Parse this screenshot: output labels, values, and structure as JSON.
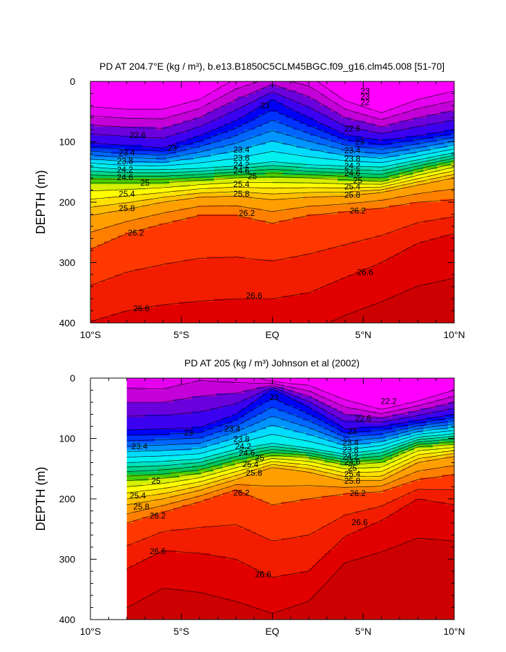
{
  "chart_data": [
    {
      "type": "heatmap",
      "title": "PD AT 204.7°E (kg / m³), b.e13.B1850C5CLM45BGC.f09_g16.clm45.008 [51-70]",
      "ylabel": "DEPTH (m)",
      "x_tick_labels": [
        "10°S",
        "5°S",
        "EQ",
        "5°N",
        "10°N"
      ],
      "x_ticks": [
        -10,
        -5,
        0,
        5,
        10
      ],
      "y_tick_labels": [
        "0",
        "100",
        "200",
        "300",
        "400"
      ],
      "y_ticks": [
        0,
        100,
        200,
        300,
        400
      ],
      "xlim": [
        -10,
        10
      ],
      "ylim": [
        0,
        400
      ],
      "x_coverage": [
        -10,
        10
      ],
      "contour_levels": [
        22.2,
        22.4,
        22.6,
        22.8,
        23.0,
        23.2,
        23.4,
        23.6,
        23.8,
        24.0,
        24.2,
        24.4,
        24.6,
        24.8,
        25.0,
        25.2,
        25.4,
        25.6,
        25.8,
        26.0,
        26.2,
        26.4,
        26.6,
        26.8
      ],
      "contour_labels": [
        {
          "text": "22.6",
          "x": -7.4,
          "y": 89
        },
        {
          "text": "23",
          "x": -5.5,
          "y": 110
        },
        {
          "text": "23",
          "x": -0.4,
          "y": 40
        },
        {
          "text": "23.4",
          "x": -8.0,
          "y": 118
        },
        {
          "text": "23.8",
          "x": -8.1,
          "y": 132
        },
        {
          "text": "24.2",
          "x": -8.1,
          "y": 146
        },
        {
          "text": "24.6",
          "x": -8.1,
          "y": 159
        },
        {
          "text": "25",
          "x": -7.0,
          "y": 168
        },
        {
          "text": "25.4",
          "x": -8.0,
          "y": 186
        },
        {
          "text": "25.8",
          "x": -8.0,
          "y": 210
        },
        {
          "text": "26.2",
          "x": -7.5,
          "y": 251
        },
        {
          "text": "26.6",
          "x": -7.2,
          "y": 376
        },
        {
          "text": "23.4",
          "x": -1.7,
          "y": 113
        },
        {
          "text": "23.8",
          "x": -1.7,
          "y": 127
        },
        {
          "text": "24.2",
          "x": -1.7,
          "y": 138
        },
        {
          "text": "24.6",
          "x": -1.7,
          "y": 148
        },
        {
          "text": "25",
          "x": -1.1,
          "y": 157
        },
        {
          "text": "25.4",
          "x": -1.7,
          "y": 170
        },
        {
          "text": "25.8",
          "x": -1.7,
          "y": 186
        },
        {
          "text": "26.2",
          "x": -1.4,
          "y": 218
        },
        {
          "text": "26.6",
          "x": -1.0,
          "y": 355
        },
        {
          "text": "22.6",
          "x": 4.4,
          "y": 78
        },
        {
          "text": "23",
          "x": 4.8,
          "y": 100
        },
        {
          "text": "23.4",
          "x": 4.4,
          "y": 114
        },
        {
          "text": "23.8",
          "x": 4.4,
          "y": 128
        },
        {
          "text": "24.2",
          "x": 4.4,
          "y": 140
        },
        {
          "text": "24.6",
          "x": 4.4,
          "y": 152
        },
        {
          "text": "25",
          "x": 4.7,
          "y": 164
        },
        {
          "text": "25.4",
          "x": 4.4,
          "y": 174
        },
        {
          "text": "25.8",
          "x": 4.4,
          "y": 188
        },
        {
          "text": "26.2",
          "x": 4.7,
          "y": 214
        },
        {
          "text": "26.6",
          "x": 5.1,
          "y": 316
        },
        {
          "text": "23",
          "x": 5.1,
          "y": 16
        },
        {
          "text": "23",
          "x": 5.1,
          "y": 25
        },
        {
          "text": "22",
          "x": 5.1,
          "y": 35
        }
      ]
    },
    {
      "type": "heatmap",
      "title": "PD AT 205 (kg / m³) Johnson et al (2002)",
      "ylabel": "DEPTH (m)",
      "x_tick_labels": [
        "10°S",
        "5°S",
        "EQ",
        "5°N",
        "10°N"
      ],
      "x_ticks": [
        -10,
        -5,
        0,
        5,
        10
      ],
      "y_tick_labels": [
        "0",
        "100",
        "200",
        "300",
        "400"
      ],
      "y_ticks": [
        0,
        100,
        200,
        300,
        400
      ],
      "xlim": [
        -10,
        10
      ],
      "ylim": [
        0,
        400
      ],
      "x_coverage": [
        -8,
        10
      ],
      "contour_levels": [
        22.2,
        22.4,
        22.6,
        22.8,
        23.0,
        23.2,
        23.4,
        23.6,
        23.8,
        24.0,
        24.2,
        24.4,
        24.6,
        24.8,
        25.0,
        25.2,
        25.4,
        25.6,
        25.8,
        26.0,
        26.2,
        26.4,
        26.6,
        26.8
      ],
      "contour_labels": [
        {
          "text": "23",
          "x": -4.6,
          "y": 90
        },
        {
          "text": "23.4",
          "x": -7.3,
          "y": 113
        },
        {
          "text": "25",
          "x": -6.4,
          "y": 170
        },
        {
          "text": "25.4",
          "x": -7.4,
          "y": 195
        },
        {
          "text": "25.8",
          "x": -7.2,
          "y": 213
        },
        {
          "text": "26.2",
          "x": -6.3,
          "y": 228
        },
        {
          "text": "26.6",
          "x": -6.3,
          "y": 287
        },
        {
          "text": "23",
          "x": 0.1,
          "y": 32
        },
        {
          "text": "23.4",
          "x": -2.2,
          "y": 84
        },
        {
          "text": "23.8",
          "x": -1.7,
          "y": 101
        },
        {
          "text": "24.2",
          "x": -1.6,
          "y": 113
        },
        {
          "text": "24.6",
          "x": -1.4,
          "y": 124
        },
        {
          "text": "25",
          "x": -0.7,
          "y": 132
        },
        {
          "text": "25.4",
          "x": -1.2,
          "y": 143
        },
        {
          "text": "25.8",
          "x": -1.0,
          "y": 157
        },
        {
          "text": "26.2",
          "x": -1.7,
          "y": 190
        },
        {
          "text": "26.6",
          "x": -0.5,
          "y": 325
        },
        {
          "text": "22.2",
          "x": 6.4,
          "y": 38
        },
        {
          "text": "22.6",
          "x": 5.0,
          "y": 67
        },
        {
          "text": "23",
          "x": 4.4,
          "y": 88
        },
        {
          "text": "23.4",
          "x": 4.3,
          "y": 107
        },
        {
          "text": "23.8",
          "x": 4.3,
          "y": 119
        },
        {
          "text": "24.2",
          "x": 4.3,
          "y": 130
        },
        {
          "text": "24.6",
          "x": 4.4,
          "y": 139
        },
        {
          "text": "25",
          "x": 4.4,
          "y": 149
        },
        {
          "text": "25.4",
          "x": 4.4,
          "y": 159
        },
        {
          "text": "25.8",
          "x": 4.4,
          "y": 170
        },
        {
          "text": "26.2",
          "x": 4.7,
          "y": 191
        },
        {
          "text": "26.6",
          "x": 4.8,
          "y": 239
        }
      ]
    }
  ]
}
